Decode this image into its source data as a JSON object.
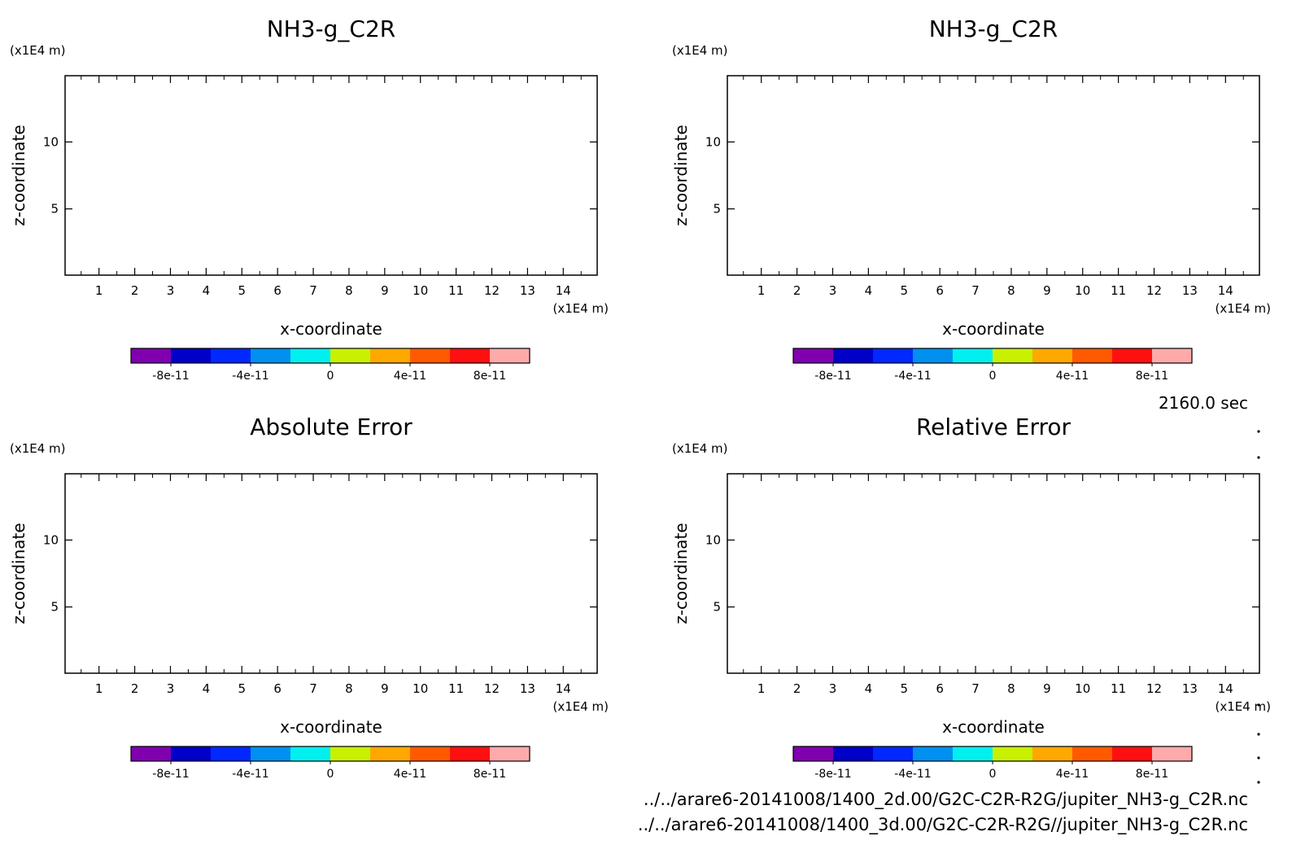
{
  "time_label": "2160.0 sec",
  "file_paths": [
    "../../arare6-20141008/1400_2d.00/G2C-C2R-R2G/jupiter_NH3-g_C2R.nc",
    "../../arare6-20141008/1400_3d.00/G2C-C2R-R2G//jupiter_NH3-g_C2R.nc"
  ],
  "colorbar": {
    "colors": [
      "#8000b0",
      "#0000c8",
      "#0028ff",
      "#0090f0",
      "#00f0f0",
      "#c8f000",
      "#ffa800",
      "#ff5a00",
      "#ff1010",
      "#ffaaaa"
    ],
    "tick_labels": [
      "-8e-11",
      "-4e-11",
      "0",
      "4e-11",
      "8e-11"
    ],
    "tick_values": [
      -8e-11,
      -4e-11,
      0,
      4e-11,
      8e-11
    ],
    "range": [
      -1e-10,
      1e-10
    ]
  },
  "chart_data": [
    {
      "type": "heatmap",
      "title": "NH3-g_C2R",
      "xlabel": "x-coordinate",
      "ylabel": "z-coordinate",
      "x_unit": "(x1E4 m)",
      "y_unit": "(x1E4 m)",
      "xlim": [
        0.05,
        14.95
      ],
      "ylim": [
        0.05,
        14.95
      ],
      "x_ticks": [
        1,
        2,
        3,
        4,
        5,
        6,
        7,
        8,
        9,
        10,
        11,
        12,
        13,
        14
      ],
      "y_ticks": [
        5,
        10
      ],
      "values": []
    },
    {
      "type": "heatmap",
      "title": "NH3-g_C2R",
      "xlabel": "x-coordinate",
      "ylabel": "z-coordinate",
      "x_unit": "(x1E4 m)",
      "y_unit": "(x1E4 m)",
      "xlim": [
        0.05,
        14.95
      ],
      "ylim": [
        0.05,
        14.95
      ],
      "x_ticks": [
        1,
        2,
        3,
        4,
        5,
        6,
        7,
        8,
        9,
        10,
        11,
        12,
        13,
        14
      ],
      "y_ticks": [
        5,
        10
      ],
      "values": []
    },
    {
      "type": "heatmap",
      "title": "Absolute Error",
      "xlabel": "x-coordinate",
      "ylabel": "z-coordinate",
      "x_unit": "(x1E4 m)",
      "y_unit": "(x1E4 m)",
      "xlim": [
        0.05,
        14.95
      ],
      "ylim": [
        0.05,
        14.95
      ],
      "x_ticks": [
        1,
        2,
        3,
        4,
        5,
        6,
        7,
        8,
        9,
        10,
        11,
        12,
        13,
        14
      ],
      "y_ticks": [
        5,
        10
      ],
      "values": []
    },
    {
      "type": "heatmap",
      "title": "Relative Error",
      "xlabel": "x-coordinate",
      "ylabel": "z-coordinate",
      "x_unit": "(x1E4 m)",
      "y_unit": "(x1E4 m)",
      "xlim": [
        0.05,
        14.95
      ],
      "ylim": [
        0.05,
        14.95
      ],
      "x_ticks": [
        1,
        2,
        3,
        4,
        5,
        6,
        7,
        8,
        9,
        10,
        11,
        12,
        13,
        14
      ],
      "y_ticks": [
        5,
        10
      ],
      "values": []
    }
  ]
}
